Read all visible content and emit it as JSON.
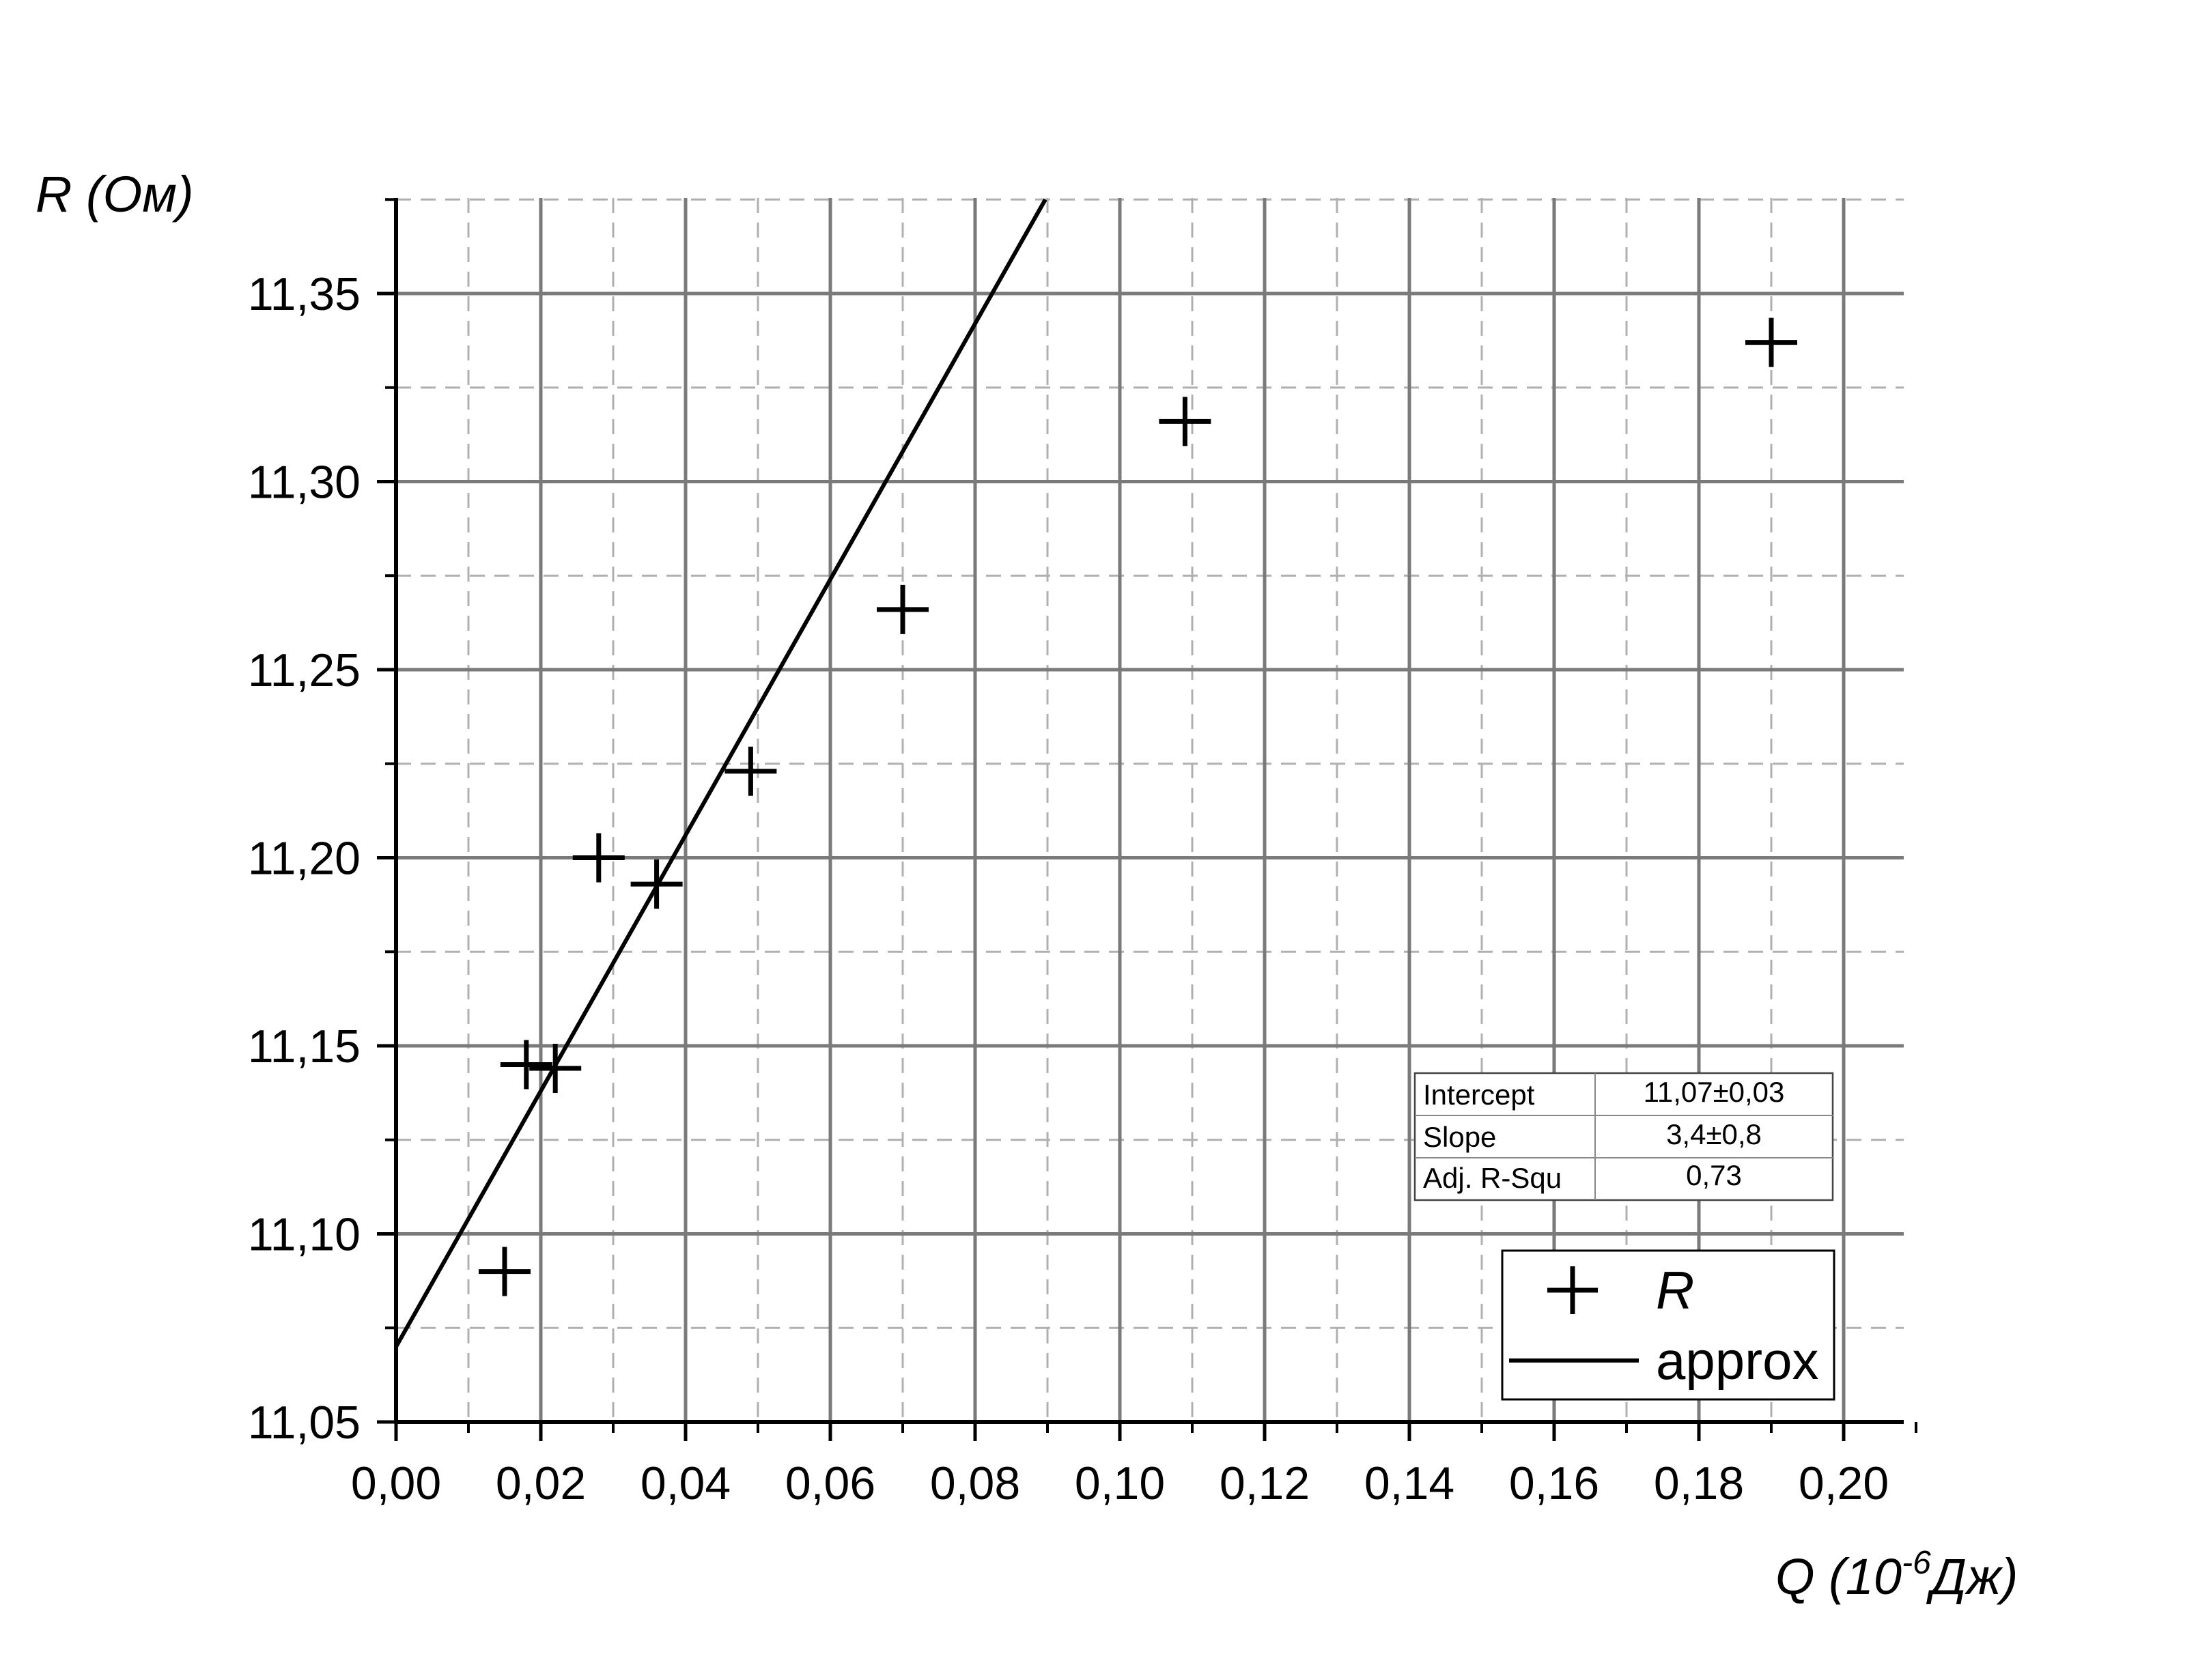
{
  "chart_data": {
    "type": "scatter",
    "xlabel": {
      "main": "Q (10",
      "sup": "-6",
      "unit": "Дж)"
    },
    "ylabel": "R (Ом)",
    "xlim": [
      0,
      0.21
    ],
    "ylim": [
      11.05,
      11.375
    ],
    "x_ticks": [
      0,
      0.02,
      0.04,
      0.06,
      0.08,
      0.1,
      0.12,
      0.14,
      0.16,
      0.18,
      0.2
    ],
    "x_tick_labels": [
      "0,00",
      "0,02",
      "0,04",
      "0,06",
      "0,08",
      "0,10",
      "0,12",
      "0,14",
      "0,16",
      "0,18",
      "0,20"
    ],
    "y_ticks": [
      11.05,
      11.1,
      11.15,
      11.2,
      11.25,
      11.3,
      11.35
    ],
    "y_tick_labels": [
      "11,05",
      "11,10",
      "11,15",
      "11,20",
      "11,25",
      "11,30",
      "11,35"
    ],
    "grid": true,
    "series": [
      {
        "name": "R",
        "marker": "plus",
        "x": [
          0.015,
          0.018,
          0.022,
          0.028,
          0.036,
          0.049,
          0.07,
          0.109,
          0.19
        ],
        "y": [
          11.09,
          11.145,
          11.144,
          11.2,
          11.193,
          11.223,
          11.266,
          11.316,
          11.337
        ]
      },
      {
        "name": "approx",
        "type": "line",
        "intercept": 11.07,
        "slope": 3.4
      }
    ],
    "stats_table": {
      "rows": [
        [
          "Intercept",
          "11,07±0,03"
        ],
        [
          "Slope",
          "3,4±0,8"
        ],
        [
          "Adj. R-Squ",
          "0,73"
        ]
      ]
    },
    "legend": {
      "position": "bottom-right",
      "entries": [
        "R",
        "approx"
      ]
    }
  }
}
